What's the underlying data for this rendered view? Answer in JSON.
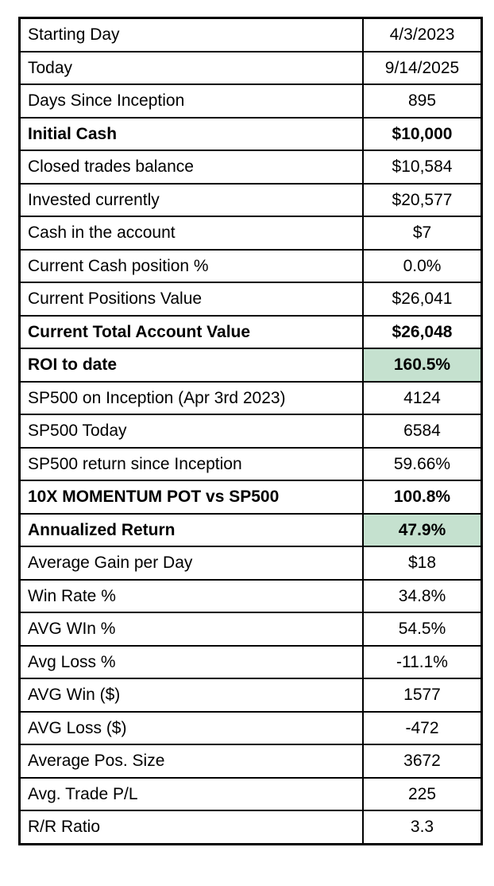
{
  "chart_data": {
    "type": "table",
    "rows": [
      {
        "label": "Starting Day",
        "value": "4/3/2023",
        "bold": false,
        "highlight": false
      },
      {
        "label": "Today",
        "value": "9/14/2025",
        "bold": false,
        "highlight": false
      },
      {
        "label": "Days Since Inception",
        "value": "895",
        "bold": false,
        "highlight": false
      },
      {
        "label": "Initial Cash",
        "value": "$10,000",
        "bold": true,
        "highlight": false
      },
      {
        "label": "Closed trades balance",
        "value": "$10,584",
        "bold": false,
        "highlight": false
      },
      {
        "label": "Invested currently",
        "value": "$20,577",
        "bold": false,
        "highlight": false
      },
      {
        "label": "Cash in the account",
        "value": "$7",
        "bold": false,
        "highlight": false
      },
      {
        "label": "Current Cash position %",
        "value": "0.0%",
        "bold": false,
        "highlight": false
      },
      {
        "label": "Current Positions Value",
        "value": "$26,041",
        "bold": false,
        "highlight": false
      },
      {
        "label": "Current Total Account Value",
        "value": "$26,048",
        "bold": true,
        "highlight": false
      },
      {
        "label": "ROI to date",
        "value": "160.5%",
        "bold": true,
        "highlight": true
      },
      {
        "label": "SP500 on Inception (Apr 3rd 2023)",
        "value": "4124",
        "bold": false,
        "highlight": false
      },
      {
        "label": "SP500 Today",
        "value": "6584",
        "bold": false,
        "highlight": false
      },
      {
        "label": "SP500 return since Inception",
        "value": "59.66%",
        "bold": false,
        "highlight": false
      },
      {
        "label": "10X MOMENTUM POT vs SP500",
        "value": "100.8%",
        "bold": true,
        "highlight": false
      },
      {
        "label": "Annualized Return",
        "value": "47.9%",
        "bold": true,
        "highlight": true
      },
      {
        "label": "Average Gain per Day",
        "value": "$18",
        "bold": false,
        "highlight": false
      },
      {
        "label": "Win Rate %",
        "value": "34.8%",
        "bold": false,
        "highlight": false
      },
      {
        "label": "AVG WIn %",
        "value": "54.5%",
        "bold": false,
        "highlight": false
      },
      {
        "label": "Avg Loss %",
        "value": "-11.1%",
        "bold": false,
        "highlight": false
      },
      {
        "label": "AVG Win ($)",
        "value": "1577",
        "bold": false,
        "highlight": false
      },
      {
        "label": "AVG Loss ($)",
        "value": "-472",
        "bold": false,
        "highlight": false
      },
      {
        "label": "Average Pos. Size",
        "value": "3672",
        "bold": false,
        "highlight": false
      },
      {
        "label": "Avg. Trade P/L",
        "value": "225",
        "bold": false,
        "highlight": false
      },
      {
        "label": "R/R Ratio",
        "value": "3.3",
        "bold": false,
        "highlight": false
      }
    ]
  },
  "styles": {
    "highlight_color": "#c5e1cf",
    "border_color": "#000000",
    "text_color": "#000000",
    "background_color": "#ffffff"
  }
}
